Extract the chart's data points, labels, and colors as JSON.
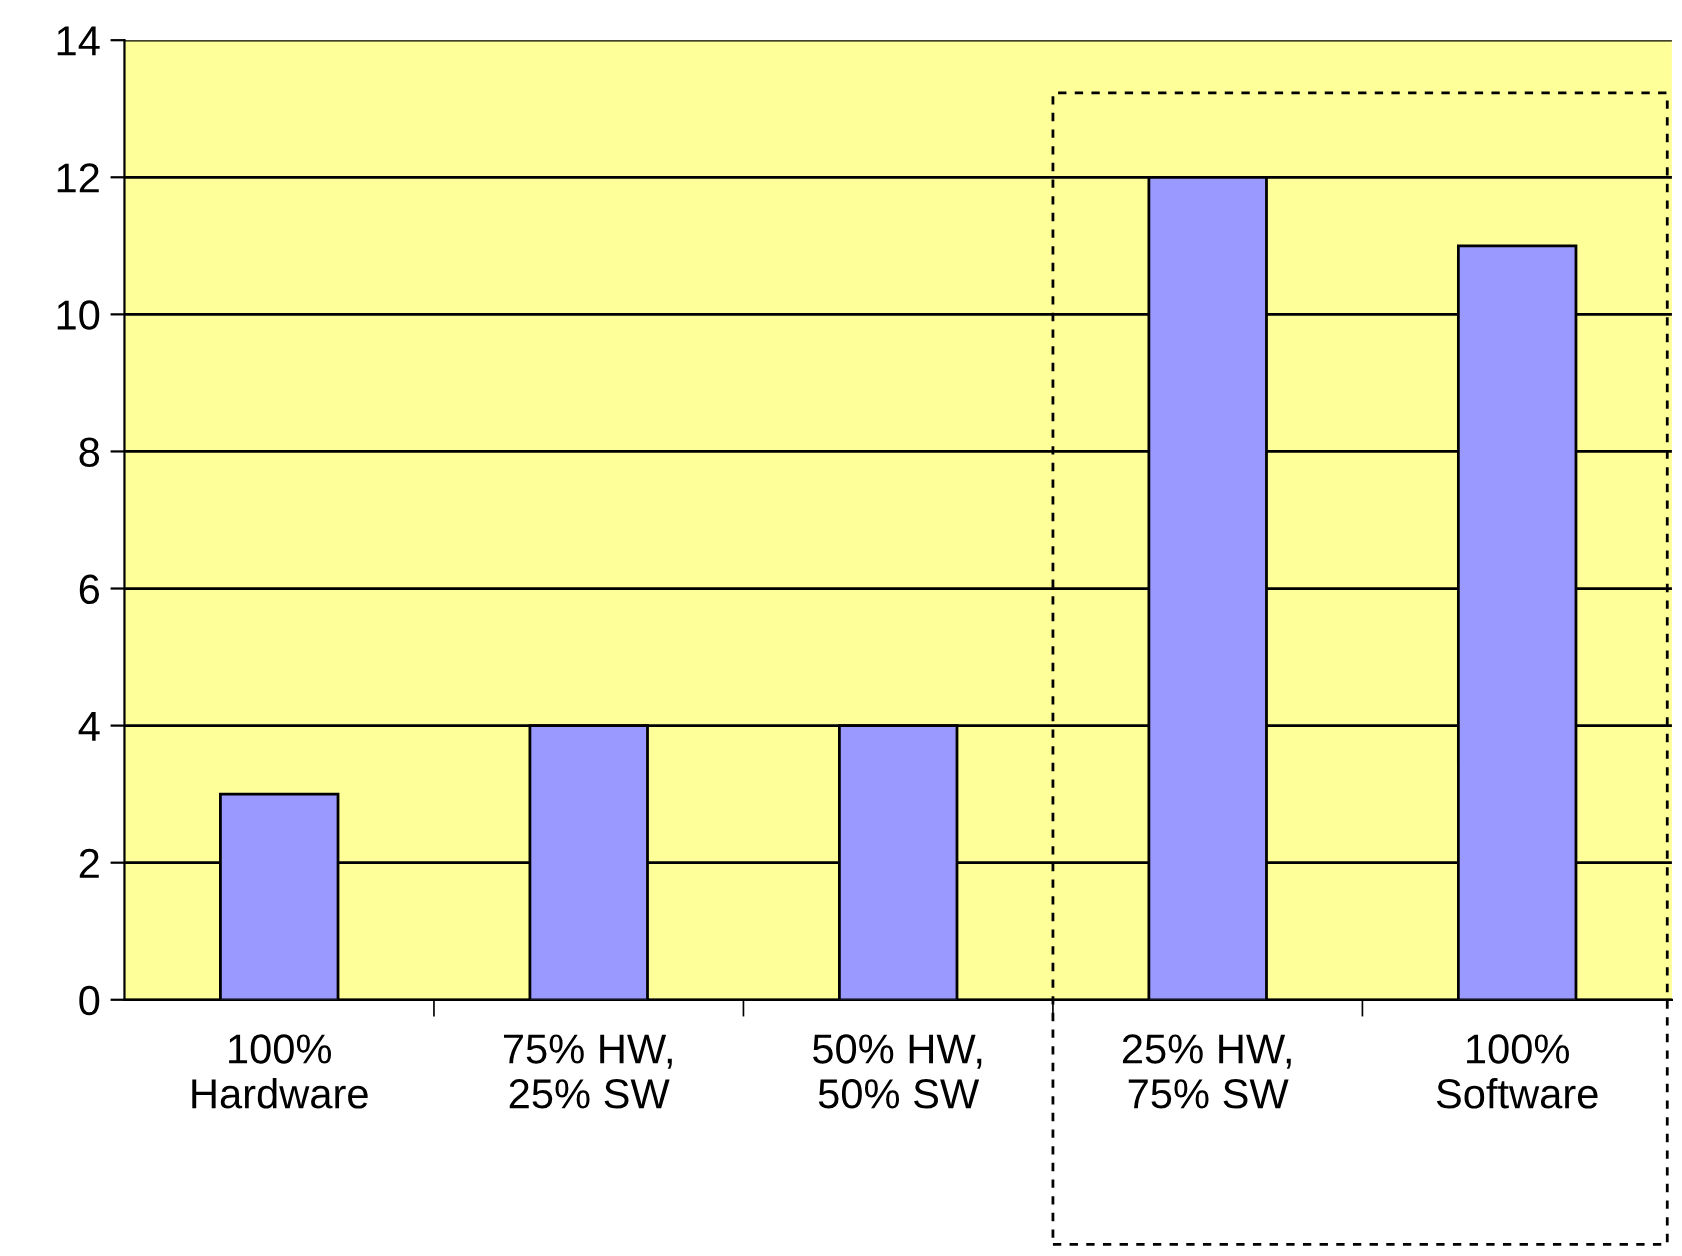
{
  "chart_data": {
    "type": "bar",
    "categories": [
      "100%\nHardware",
      "75% HW,\n25% SW",
      "50% HW,\n50% SW",
      "25% HW,\n75% SW",
      "100%\nSoftware"
    ],
    "values": [
      3,
      4,
      4,
      12,
      11
    ],
    "color": "#9999ff",
    "ylim": [
      0,
      14
    ],
    "yticks": [
      0,
      2,
      4,
      6,
      8,
      10,
      12,
      14
    ],
    "grid": "y"
  }
}
